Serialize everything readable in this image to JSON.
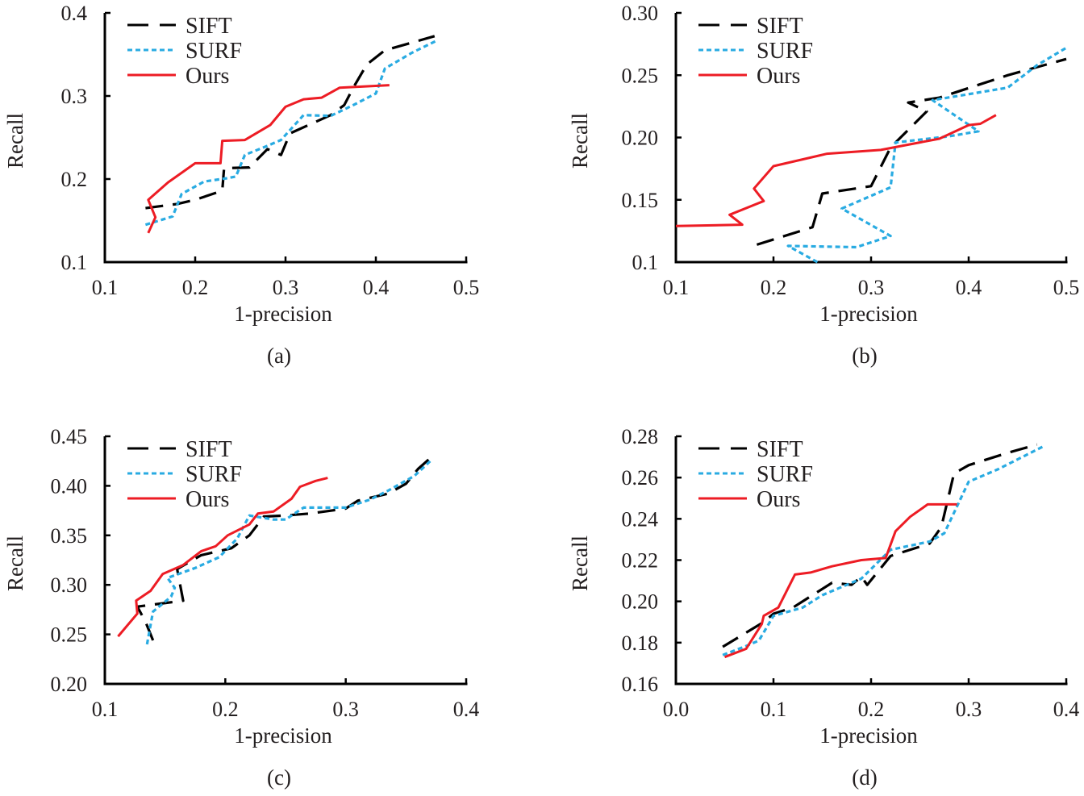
{
  "figure": {
    "legend_labels": [
      "SIFT",
      "SURF",
      "Ours"
    ],
    "series_colors": {
      "SIFT": "#000000",
      "SURF": "#29abe2",
      "Ours": "#ed1c24"
    }
  },
  "chart_data": [
    {
      "id": "a",
      "type": "line",
      "caption": "(a)",
      "title": "",
      "xlabel": "1-precision",
      "ylabel": "Recall",
      "xlim": [
        0.1,
        0.5
      ],
      "ylim": [
        0.1,
        0.4
      ],
      "xticks": [
        0.1,
        0.2,
        0.3,
        0.4,
        0.5
      ],
      "xtick_labels": [
        "0.1",
        "0.2",
        "0.3",
        "0.4",
        "0.5"
      ],
      "yticks": [
        0.1,
        0.2,
        0.3,
        0.4
      ],
      "ytick_labels": [
        "0.1",
        "0.2",
        "0.3",
        "0.4"
      ],
      "grid": false,
      "legend_position": "top-left",
      "series": [
        {
          "name": "SIFT",
          "style": "dashed",
          "points": [
            [
              0.145,
              0.165
            ],
            [
              0.18,
              0.17
            ],
            [
              0.2,
              0.175
            ],
            [
              0.23,
              0.186
            ],
            [
              0.232,
              0.213
            ],
            [
              0.26,
              0.214
            ],
            [
              0.28,
              0.236
            ],
            [
              0.295,
              0.229
            ],
            [
              0.305,
              0.255
            ],
            [
              0.35,
              0.277
            ],
            [
              0.365,
              0.289
            ],
            [
              0.375,
              0.31
            ],
            [
              0.39,
              0.338
            ],
            [
              0.41,
              0.355
            ],
            [
              0.465,
              0.372
            ]
          ]
        },
        {
          "name": "SURF",
          "style": "dotted",
          "points": [
            [
              0.145,
              0.145
            ],
            [
              0.16,
              0.15
            ],
            [
              0.175,
              0.155
            ],
            [
              0.185,
              0.182
            ],
            [
              0.21,
              0.197
            ],
            [
              0.235,
              0.201
            ],
            [
              0.245,
              0.203
            ],
            [
              0.255,
              0.229
            ],
            [
              0.28,
              0.24
            ],
            [
              0.295,
              0.247
            ],
            [
              0.32,
              0.277
            ],
            [
              0.35,
              0.276
            ],
            [
              0.375,
              0.289
            ],
            [
              0.4,
              0.303
            ],
            [
              0.41,
              0.333
            ],
            [
              0.44,
              0.352
            ],
            [
              0.468,
              0.367
            ]
          ]
        },
        {
          "name": "Ours",
          "style": "solid",
          "points": [
            [
              0.148,
              0.135
            ],
            [
              0.156,
              0.154
            ],
            [
              0.148,
              0.175
            ],
            [
              0.17,
              0.196
            ],
            [
              0.2,
              0.219
            ],
            [
              0.228,
              0.219
            ],
            [
              0.23,
              0.246
            ],
            [
              0.255,
              0.247
            ],
            [
              0.283,
              0.265
            ],
            [
              0.3,
              0.287
            ],
            [
              0.32,
              0.296
            ],
            [
              0.34,
              0.298
            ],
            [
              0.36,
              0.31
            ],
            [
              0.415,
              0.313
            ]
          ]
        }
      ]
    },
    {
      "id": "b",
      "type": "line",
      "caption": "(b)",
      "title": "",
      "xlabel": "1-precision",
      "ylabel": "Recall",
      "xlim": [
        0.1,
        0.5
      ],
      "ylim": [
        0.1,
        0.3
      ],
      "xticks": [
        0.1,
        0.2,
        0.3,
        0.4,
        0.5
      ],
      "xtick_labels": [
        "0.1",
        "0.2",
        "0.3",
        "0.4",
        "0.5"
      ],
      "yticks": [
        0.1,
        0.15,
        0.2,
        0.25,
        0.3
      ],
      "ytick_labels": [
        "0.1",
        "0.15",
        "0.20",
        "0.25",
        "0.30"
      ],
      "grid": false,
      "legend_position": "top-left",
      "series": [
        {
          "name": "SIFT",
          "style": "dashed",
          "points": [
            [
              0.183,
              0.114
            ],
            [
              0.24,
              0.128
            ],
            [
              0.25,
              0.155
            ],
            [
              0.3,
              0.161
            ],
            [
              0.32,
              0.192
            ],
            [
              0.357,
              0.221
            ],
            [
              0.338,
              0.228
            ],
            [
              0.37,
              0.232
            ],
            [
              0.44,
              0.25
            ],
            [
              0.5,
              0.263
            ]
          ]
        },
        {
          "name": "SURF",
          "style": "dotted",
          "points": [
            [
              0.245,
              0.1
            ],
            [
              0.215,
              0.113
            ],
            [
              0.285,
              0.112
            ],
            [
              0.32,
              0.121
            ],
            [
              0.27,
              0.143
            ],
            [
              0.32,
              0.16
            ],
            [
              0.325,
              0.196
            ],
            [
              0.38,
              0.201
            ],
            [
              0.41,
              0.205
            ],
            [
              0.363,
              0.23
            ],
            [
              0.44,
              0.24
            ],
            [
              0.47,
              0.258
            ],
            [
              0.5,
              0.272
            ]
          ]
        },
        {
          "name": "Ours",
          "style": "solid",
          "points": [
            [
              0.1,
              0.129
            ],
            [
              0.168,
              0.13
            ],
            [
              0.155,
              0.138
            ],
            [
              0.19,
              0.149
            ],
            [
              0.18,
              0.159
            ],
            [
              0.2,
              0.177
            ],
            [
              0.255,
              0.187
            ],
            [
              0.31,
              0.19
            ],
            [
              0.37,
              0.199
            ],
            [
              0.4,
              0.21
            ],
            [
              0.412,
              0.211
            ],
            [
              0.428,
              0.218
            ]
          ]
        }
      ]
    },
    {
      "id": "c",
      "type": "line",
      "caption": "(c)",
      "title": "",
      "xlabel": "1-precision",
      "ylabel": "Recall",
      "xlim": [
        0.1,
        0.4
      ],
      "ylim": [
        0.2,
        0.45
      ],
      "xticks": [
        0.1,
        0.2,
        0.3,
        0.4
      ],
      "xtick_labels": [
        "0.1",
        "0.2",
        "0.3",
        "0.4"
      ],
      "yticks": [
        0.2,
        0.25,
        0.3,
        0.35,
        0.4,
        0.45
      ],
      "ytick_labels": [
        "0.20",
        "0.25",
        "0.30",
        "0.35",
        "0.40",
        "0.45"
      ],
      "grid": false,
      "legend_position": "top-left",
      "series": [
        {
          "name": "SIFT",
          "style": "dashed",
          "points": [
            [
              0.14,
              0.244
            ],
            [
              0.134,
              0.262
            ],
            [
              0.127,
              0.278
            ],
            [
              0.165,
              0.284
            ],
            [
              0.16,
              0.316
            ],
            [
              0.18,
              0.33
            ],
            [
              0.205,
              0.337
            ],
            [
              0.22,
              0.35
            ],
            [
              0.232,
              0.369
            ],
            [
              0.25,
              0.37
            ],
            [
              0.27,
              0.372
            ],
            [
              0.3,
              0.377
            ],
            [
              0.31,
              0.385
            ],
            [
              0.335,
              0.392
            ],
            [
              0.35,
              0.402
            ],
            [
              0.36,
              0.417
            ],
            [
              0.372,
              0.43
            ]
          ]
        },
        {
          "name": "SURF",
          "style": "dotted",
          "points": [
            [
              0.135,
              0.24
            ],
            [
              0.14,
              0.273
            ],
            [
              0.155,
              0.288
            ],
            [
              0.158,
              0.297
            ],
            [
              0.152,
              0.307
            ],
            [
              0.175,
              0.317
            ],
            [
              0.195,
              0.328
            ],
            [
              0.21,
              0.347
            ],
            [
              0.22,
              0.37
            ],
            [
              0.24,
              0.366
            ],
            [
              0.25,
              0.366
            ],
            [
              0.265,
              0.378
            ],
            [
              0.3,
              0.378
            ],
            [
              0.32,
              0.386
            ],
            [
              0.335,
              0.395
            ],
            [
              0.357,
              0.41
            ],
            [
              0.372,
              0.427
            ]
          ]
        },
        {
          "name": "Ours",
          "style": "solid",
          "points": [
            [
              0.111,
              0.248
            ],
            [
              0.127,
              0.271
            ],
            [
              0.126,
              0.284
            ],
            [
              0.138,
              0.294
            ],
            [
              0.148,
              0.311
            ],
            [
              0.165,
              0.32
            ],
            [
              0.18,
              0.334
            ],
            [
              0.192,
              0.339
            ],
            [
              0.202,
              0.35
            ],
            [
              0.22,
              0.361
            ],
            [
              0.227,
              0.372
            ],
            [
              0.24,
              0.374
            ],
            [
              0.255,
              0.387
            ],
            [
              0.262,
              0.399
            ],
            [
              0.275,
              0.405
            ],
            [
              0.285,
              0.408
            ]
          ]
        }
      ]
    },
    {
      "id": "d",
      "type": "line",
      "caption": "(d)",
      "title": "",
      "xlabel": "1-precision",
      "ylabel": "Recall",
      "xlim": [
        0.0,
        0.4
      ],
      "ylim": [
        0.16,
        0.28
      ],
      "xticks": [
        0.0,
        0.1,
        0.2,
        0.3,
        0.4
      ],
      "xtick_labels": [
        "0.0",
        "0.1",
        "0.2",
        "0.3",
        "0.4"
      ],
      "yticks": [
        0.16,
        0.18,
        0.2,
        0.22,
        0.24,
        0.26,
        0.28
      ],
      "ytick_labels": [
        "0.16",
        "0.18",
        "0.20",
        "0.22",
        "0.24",
        "0.26",
        "0.28"
      ],
      "grid": false,
      "legend_position": "top-left",
      "series": [
        {
          "name": "SIFT",
          "style": "dashed",
          "points": [
            [
              0.048,
              0.178
            ],
            [
              0.09,
              0.19
            ],
            [
              0.1,
              0.194
            ],
            [
              0.12,
              0.197
            ],
            [
              0.16,
              0.209
            ],
            [
              0.18,
              0.208
            ],
            [
              0.19,
              0.212
            ],
            [
              0.196,
              0.208
            ],
            [
              0.22,
              0.222
            ],
            [
              0.26,
              0.228
            ],
            [
              0.272,
              0.236
            ],
            [
              0.285,
              0.262
            ],
            [
              0.3,
              0.266
            ],
            [
              0.34,
              0.272
            ],
            [
              0.37,
              0.276
            ]
          ]
        },
        {
          "name": "SURF",
          "style": "dotted",
          "points": [
            [
              0.048,
              0.174
            ],
            [
              0.07,
              0.178
            ],
            [
              0.085,
              0.181
            ],
            [
              0.1,
              0.193
            ],
            [
              0.13,
              0.197
            ],
            [
              0.15,
              0.203
            ],
            [
              0.19,
              0.211
            ],
            [
              0.22,
              0.225
            ],
            [
              0.26,
              0.229
            ],
            [
              0.275,
              0.233
            ],
            [
              0.29,
              0.248
            ],
            [
              0.3,
              0.258
            ],
            [
              0.33,
              0.264
            ],
            [
              0.376,
              0.275
            ]
          ]
        },
        {
          "name": "Ours",
          "style": "solid",
          "points": [
            [
              0.05,
              0.173
            ],
            [
              0.072,
              0.177
            ],
            [
              0.088,
              0.189
            ],
            [
              0.09,
              0.193
            ],
            [
              0.105,
              0.197
            ],
            [
              0.122,
              0.213
            ],
            [
              0.138,
              0.214
            ],
            [
              0.16,
              0.217
            ],
            [
              0.19,
              0.22
            ],
            [
              0.215,
              0.221
            ],
            [
              0.225,
              0.234
            ],
            [
              0.24,
              0.241
            ],
            [
              0.258,
              0.247
            ],
            [
              0.288,
              0.247
            ]
          ]
        }
      ]
    }
  ]
}
